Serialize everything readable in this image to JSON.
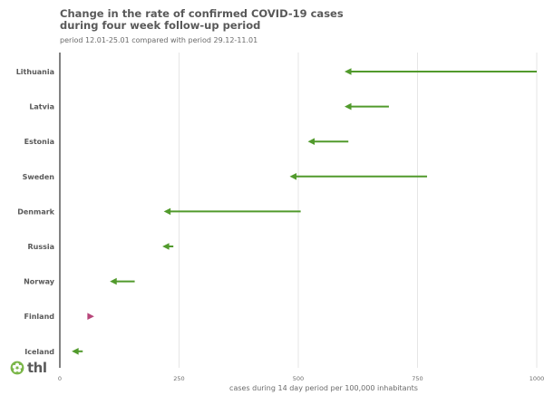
{
  "title_lines": [
    "Change in the rate of confirmed COVID-19 cases",
    "during four week follow-up period"
  ],
  "subtitle": "period 12.01-25.01 compared with period 29.12-11.01",
  "logo": {
    "text": "thl",
    "icon": "thl-flower-logo-icon",
    "color": "#7ab648"
  },
  "colors": {
    "decrease": "#519a2c",
    "increase": "#b7467a",
    "grid": "#e6e6e6",
    "axis": "#595959"
  },
  "chart_data": {
    "type": "arrow",
    "title": "Change in the rate of confirmed COVID-19 cases during four week follow-up period",
    "subtitle": "period 12.01-25.01 compared with period 29.12-11.01",
    "xlabel": "cases during 14 day period per 100,000 inhabitants",
    "xlim": [
      0,
      1000
    ],
    "xticks": [
      0,
      250,
      500,
      750,
      1000
    ],
    "xtick_labels": [
      "0",
      "250",
      "500",
      "750",
      "1000"
    ],
    "grid": "vertical",
    "series": [
      {
        "name": "period 29.12-11.01",
        "values": [
          1000,
          690,
          605,
          770,
          505,
          238,
          157,
          62,
          48
        ]
      },
      {
        "name": "period 12.01-25.01",
        "values": [
          597,
          597,
          520,
          482,
          218,
          215,
          105,
          72,
          25
        ]
      }
    ],
    "categories": [
      "Lithuania",
      "Latvia",
      "Estonia",
      "Sweden",
      "Denmark",
      "Russia",
      "Norway",
      "Finland",
      "Iceland"
    ]
  }
}
